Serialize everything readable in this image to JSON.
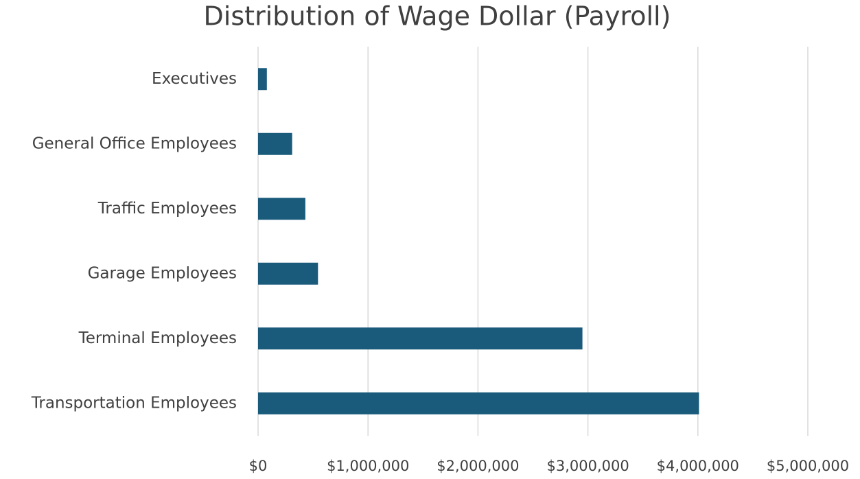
{
  "chart_data": {
    "type": "bar",
    "orientation": "horizontal",
    "title": "Distribution of Wage Dollar (Payroll)",
    "categories": [
      "Executives",
      "General Office Employees",
      "Traffic Employees",
      "Garage Employees",
      "Terminal Employees",
      "Transportation Employees"
    ],
    "values": [
      80000,
      310000,
      430000,
      545000,
      2950000,
      4010000
    ],
    "color": "#1a5b7c",
    "xlim": [
      0,
      5000000
    ],
    "xticks": [
      {
        "value": 0,
        "label": "$0"
      },
      {
        "value": 1000000,
        "label": "$1,000,000"
      },
      {
        "value": 2000000,
        "label": "$2,000,000"
      },
      {
        "value": 3000000,
        "label": "$3,000,000"
      },
      {
        "value": 4000000,
        "label": "$4,000,000"
      },
      {
        "value": 5000000,
        "label": "$5,000,000"
      }
    ],
    "grid": true
  }
}
